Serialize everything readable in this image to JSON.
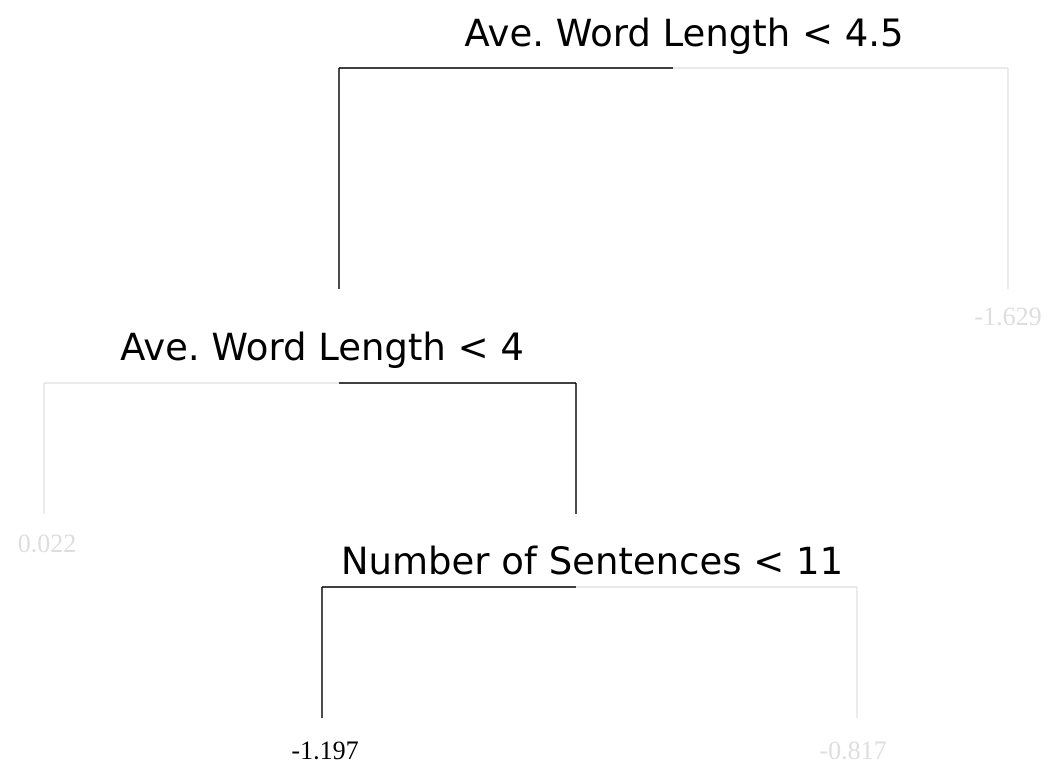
{
  "diagram": {
    "type": "regression-tree",
    "path_color": "#000000",
    "muted_color": "#dedede",
    "splits": {
      "root": "Ave. Word Length < 4.5",
      "second": "Ave. Word Length < 4",
      "third": "Number of Sentences < 11"
    },
    "leaves": {
      "root_right": "-1.629",
      "second_left": "0.022",
      "third_left": "-1.197",
      "third_right": "-0.817"
    },
    "highlighted_leaf": "third_left"
  }
}
